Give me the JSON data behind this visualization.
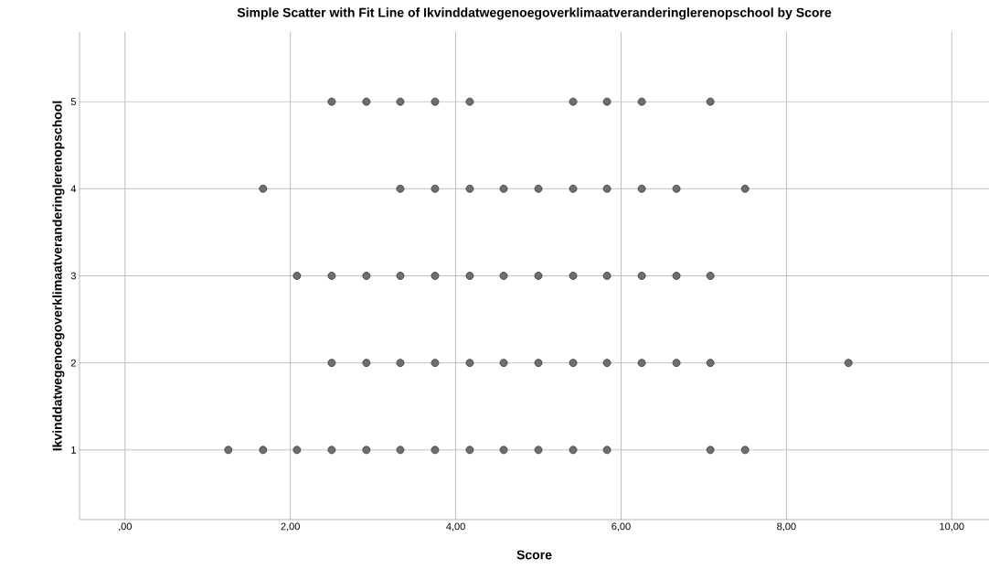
{
  "chart_data": {
    "type": "scatter",
    "title": "Simple Scatter with Fit Line of Ikvinddatwegenoegoverklimaatveranderinglerenopschool by Score",
    "xlabel": "Score",
    "ylabel": "Ikvinddatwegenoegoverklimaatveranderinglerenopschool",
    "x": [
      2.5,
      2.92,
      3.33,
      3.75,
      4.17,
      5.42,
      5.83,
      6.25,
      7.08,
      1.67,
      3.33,
      3.75,
      4.17,
      4.58,
      5.0,
      5.42,
      5.83,
      6.25,
      6.67,
      7.5,
      2.08,
      2.5,
      2.92,
      3.33,
      3.75,
      4.17,
      4.58,
      5.0,
      5.42,
      5.83,
      6.25,
      6.67,
      7.08,
      2.5,
      2.92,
      3.33,
      3.75,
      4.17,
      4.58,
      5.0,
      5.42,
      5.83,
      6.25,
      6.67,
      7.08,
      8.75,
      1.25,
      1.67,
      2.08,
      2.5,
      2.92,
      3.33,
      3.75,
      4.17,
      4.58,
      5.0,
      5.42,
      5.83,
      7.08,
      7.5
    ],
    "values": [
      5,
      5,
      5,
      5,
      5,
      5,
      5,
      5,
      5,
      4,
      4,
      4,
      4,
      4,
      4,
      4,
      4,
      4,
      4,
      4,
      3,
      3,
      3,
      3,
      3,
      3,
      3,
      3,
      3,
      3,
      3,
      3,
      3,
      2,
      2,
      2,
      2,
      2,
      2,
      2,
      2,
      2,
      2,
      2,
      2,
      2,
      1,
      1,
      1,
      1,
      1,
      1,
      1,
      1,
      1,
      1,
      1,
      1,
      1,
      1
    ],
    "color": "#6e6e6e",
    "xlim": [
      -0.55,
      10.45
    ],
    "ylim": [
      0.2,
      5.8
    ],
    "xticks": [
      {
        "value": 0,
        "label": ",00"
      },
      {
        "value": 2,
        "label": "2,00"
      },
      {
        "value": 4,
        "label": "4,00"
      },
      {
        "value": 6,
        "label": "6,00"
      },
      {
        "value": 8,
        "label": "8,00"
      },
      {
        "value": 10,
        "label": "10,00"
      }
    ],
    "yticks": [
      1,
      2,
      3,
      4,
      5
    ],
    "grid": true,
    "marker": "circle"
  }
}
